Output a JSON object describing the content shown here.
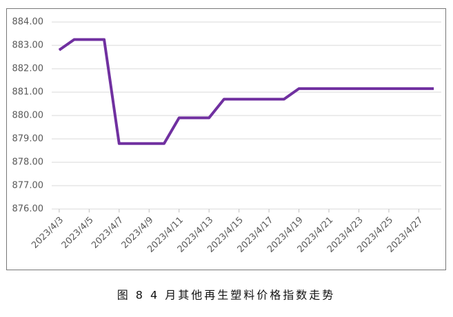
{
  "chart_data": {
    "type": "line",
    "caption": "图 8  4 月其他再生塑料价格指数走势",
    "categories": [
      "2023/4/3",
      null,
      "2023/4/5",
      null,
      "2023/4/7",
      null,
      "2023/4/9",
      null,
      "2023/4/11",
      null,
      "2023/4/13",
      null,
      "2023/4/15",
      null,
      "2023/4/17",
      null,
      "2023/4/19",
      null,
      "2023/4/21",
      null,
      "2023/4/23",
      null,
      "2023/4/25",
      null,
      "2023/4/27",
      null
    ],
    "series": [
      {
        "color": "#7030a0",
        "values": [
          882.8,
          883.25,
          883.25,
          883.25,
          878.8,
          878.8,
          878.8,
          878.8,
          879.9,
          879.9,
          879.9,
          880.7,
          880.7,
          880.7,
          880.7,
          880.7,
          881.15,
          881.15,
          881.15,
          881.15,
          881.15,
          881.15,
          881.15,
          881.15,
          881.15,
          881.15
        ]
      }
    ],
    "ylim": [
      876,
      884
    ],
    "yticks": [
      {
        "value": 876,
        "label": "876.00"
      },
      {
        "value": 877,
        "label": "877.00"
      },
      {
        "value": 878,
        "label": "878.00"
      },
      {
        "value": 879,
        "label": "879.00"
      },
      {
        "value": 880,
        "label": "880.00"
      },
      {
        "value": 881,
        "label": "881.00"
      },
      {
        "value": 882,
        "label": "882.00"
      },
      {
        "value": 883,
        "label": "883.00"
      },
      {
        "value": 884,
        "label": "884.00"
      }
    ],
    "grid": true
  }
}
